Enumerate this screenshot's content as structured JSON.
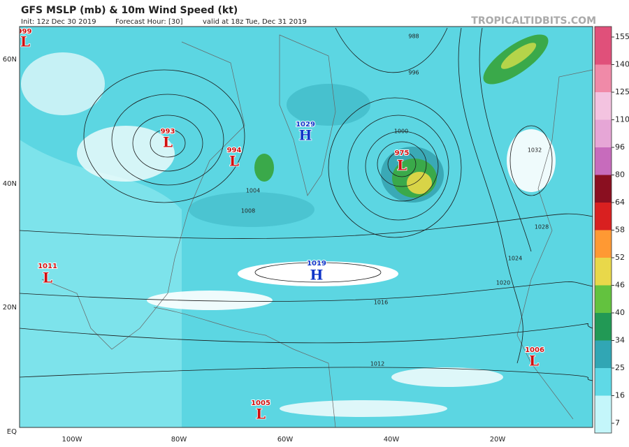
{
  "header": {
    "title": "GFS MSLP (mb) & 10m Wind Speed (kt)",
    "init": "Init: 12z Dec 30 2019",
    "forecast_hour": "Forecast Hour: [30]",
    "valid": "valid at 18z Tue, Dec 31 2019",
    "brand": "TROPICALTIDBITS.COM"
  },
  "colorbar": {
    "ticks": [
      155,
      140,
      125,
      110,
      96,
      80,
      64,
      58,
      52,
      46,
      40,
      34,
      25,
      16,
      7
    ],
    "colors": [
      "#e0507a",
      "#f08aa8",
      "#f3c3e0",
      "#e6a6d6",
      "#c76bbc",
      "#8a0f20",
      "#d92020",
      "#ff9933",
      "#e9d84a",
      "#63c23f",
      "#229955",
      "#31a6b4",
      "#5fd9e6",
      "#c4f6fa"
    ]
  },
  "axes": {
    "lat_labels": [
      "60N",
      "40N",
      "20N",
      "EQ"
    ],
    "lon_labels": [
      "100W",
      "80W",
      "60W",
      "40W",
      "20W"
    ]
  },
  "pressure_centers": [
    {
      "value": "999",
      "letter": "L"
    },
    {
      "value": "993",
      "letter": "L"
    },
    {
      "value": "994",
      "letter": "L"
    },
    {
      "value": "1029",
      "letter": "H"
    },
    {
      "value": "975",
      "letter": "L"
    },
    {
      "value": "1019",
      "letter": "H"
    },
    {
      "value": "1011",
      "letter": "L"
    },
    {
      "value": "1006",
      "letter": "L"
    },
    {
      "value": "1005",
      "letter": "L"
    }
  ],
  "isobar_labels": [
    "988",
    "996",
    "1000",
    "1004",
    "1008",
    "1012",
    "1016",
    "1020",
    "1024",
    "1028",
    "1032"
  ]
}
